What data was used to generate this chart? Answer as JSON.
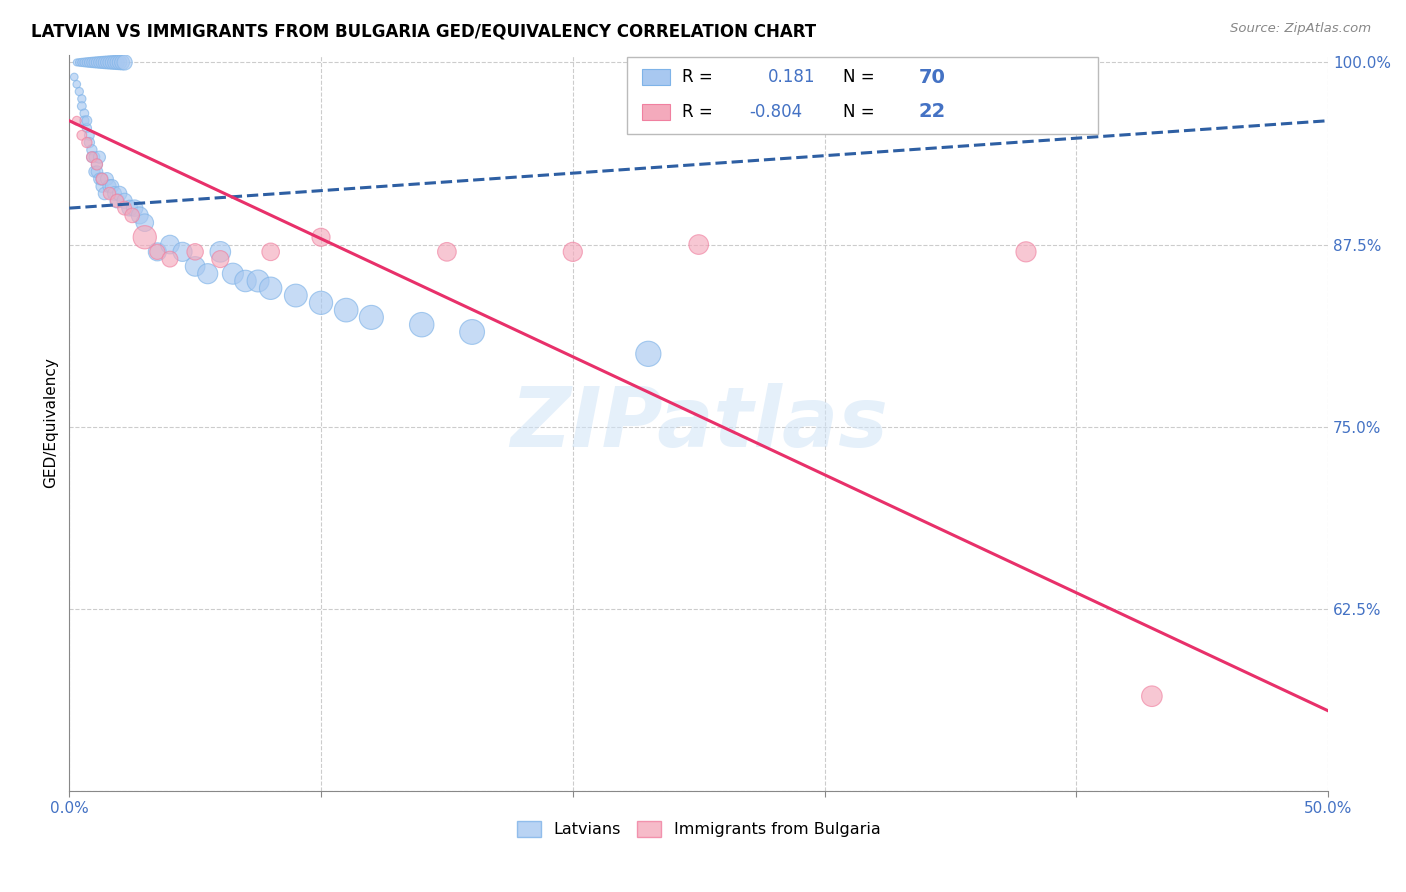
{
  "title": "LATVIAN VS IMMIGRANTS FROM BULGARIA GED/EQUIVALENCY CORRELATION CHART",
  "source": "Source: ZipAtlas.com",
  "ylabel": "GED/Equivalency",
  "xlim": [
    0.0,
    0.5
  ],
  "ylim": [
    0.5,
    1.005
  ],
  "latvian_color": "#A8C8F0",
  "latvian_edge_color": "#7EB3E8",
  "bulgarian_color": "#F4AABC",
  "bulgarian_edge_color": "#F080A0",
  "trendline_latvian_color": "#2E5FA3",
  "trendline_bulgarian_color": "#E8306A",
  "R_latvian": 0.181,
  "N_latvian": 70,
  "R_bulgarian": -0.804,
  "N_bulgarian": 22,
  "watermark": "ZIPatlas",
  "lat_x": [
    0.002,
    0.003,
    0.004,
    0.005,
    0.005,
    0.006,
    0.006,
    0.007,
    0.007,
    0.008,
    0.008,
    0.009,
    0.009,
    0.01,
    0.01,
    0.011,
    0.011,
    0.012,
    0.012,
    0.013,
    0.013,
    0.014,
    0.015,
    0.016,
    0.017,
    0.018,
    0.019,
    0.02,
    0.022,
    0.024,
    0.026,
    0.028,
    0.03,
    0.035,
    0.04,
    0.045,
    0.05,
    0.055,
    0.06,
    0.065,
    0.07,
    0.075,
    0.08,
    0.09,
    0.1,
    0.11,
    0.12,
    0.14,
    0.16,
    0.23,
    0.003,
    0.004,
    0.005,
    0.006,
    0.007,
    0.008,
    0.009,
    0.01,
    0.011,
    0.012,
    0.013,
    0.014,
    0.015,
    0.016,
    0.017,
    0.018,
    0.019,
    0.02,
    0.021,
    0.022
  ],
  "lat_y": [
    0.99,
    0.985,
    0.98,
    0.975,
    0.97,
    0.965,
    0.96,
    0.955,
    0.96,
    0.95,
    0.945,
    0.94,
    0.935,
    0.935,
    0.925,
    0.93,
    0.925,
    0.92,
    0.935,
    0.915,
    0.92,
    0.91,
    0.92,
    0.915,
    0.915,
    0.91,
    0.905,
    0.91,
    0.905,
    0.9,
    0.9,
    0.895,
    0.89,
    0.87,
    0.875,
    0.87,
    0.86,
    0.855,
    0.87,
    0.855,
    0.85,
    0.85,
    0.845,
    0.84,
    0.835,
    0.83,
    0.825,
    0.82,
    0.815,
    0.8,
    1.0,
    1.0,
    1.0,
    1.0,
    1.0,
    1.0,
    1.0,
    1.0,
    1.0,
    1.0,
    1.0,
    1.0,
    1.0,
    1.0,
    1.0,
    1.0,
    1.0,
    1.0,
    1.0,
    1.0
  ],
  "lat_s": [
    30,
    30,
    35,
    35,
    40,
    40,
    45,
    45,
    50,
    50,
    55,
    55,
    60,
    60,
    65,
    65,
    70,
    70,
    75,
    75,
    80,
    80,
    85,
    90,
    95,
    100,
    105,
    110,
    120,
    130,
    140,
    150,
    160,
    170,
    180,
    190,
    200,
    210,
    220,
    230,
    240,
    250,
    260,
    270,
    280,
    290,
    300,
    310,
    320,
    330,
    25,
    30,
    35,
    40,
    45,
    50,
    55,
    60,
    65,
    70,
    75,
    80,
    85,
    90,
    95,
    100,
    105,
    110,
    115,
    120
  ],
  "bul_x": [
    0.003,
    0.005,
    0.007,
    0.009,
    0.011,
    0.013,
    0.016,
    0.019,
    0.022,
    0.025,
    0.03,
    0.035,
    0.04,
    0.05,
    0.06,
    0.08,
    0.1,
    0.15,
    0.2,
    0.25,
    0.38,
    0.43
  ],
  "bul_y": [
    0.96,
    0.95,
    0.945,
    0.935,
    0.93,
    0.92,
    0.91,
    0.905,
    0.9,
    0.895,
    0.88,
    0.87,
    0.865,
    0.87,
    0.865,
    0.87,
    0.88,
    0.87,
    0.87,
    0.875,
    0.87,
    0.565
  ],
  "bul_s": [
    40,
    50,
    55,
    60,
    65,
    70,
    80,
    90,
    100,
    110,
    280,
    120,
    130,
    140,
    150,
    160,
    170,
    180,
    190,
    200,
    210,
    220
  ],
  "trend_lat_x0": 0.0,
  "trend_lat_x1": 0.5,
  "trend_lat_y0": 0.9,
  "trend_lat_y1": 0.96,
  "trend_bul_x0": 0.0,
  "trend_bul_x1": 0.5,
  "trend_bul_y0": 0.96,
  "trend_bul_y1": 0.555
}
